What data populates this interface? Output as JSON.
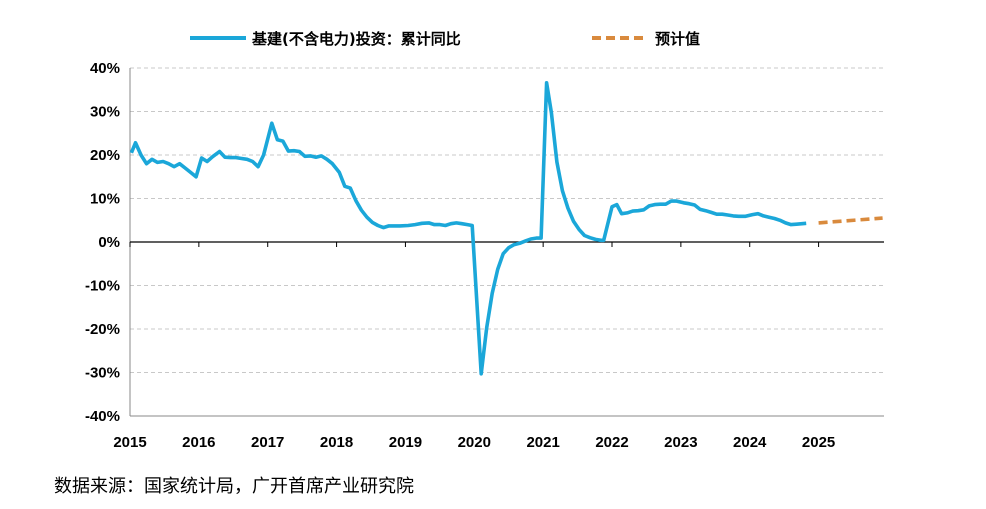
{
  "chart_data": {
    "type": "line",
    "title": "",
    "xlabel": "",
    "ylabel": "",
    "x_ticks": [
      "2015",
      "2016",
      "2017",
      "2018",
      "2019",
      "2020",
      "2021",
      "2022",
      "2023",
      "2024",
      "2025"
    ],
    "y_ticks": [
      "40%",
      "30%",
      "20%",
      "10%",
      "0%",
      "-10%",
      "-20%",
      "-30%",
      "-40%"
    ],
    "ylim": [
      -40,
      40
    ],
    "xlim": [
      2015.0,
      2025.95
    ],
    "grid": "horizontal dashed",
    "legend_position": "top-center",
    "series": [
      {
        "name": "基建(不含电力)投资：累计同比",
        "color": "#1ba7d9",
        "style": "solid",
        "points": [
          [
            2015.02,
            20.5
          ],
          [
            2015.08,
            22.8
          ],
          [
            2015.16,
            20.0
          ],
          [
            2015.24,
            18.0
          ],
          [
            2015.32,
            19.0
          ],
          [
            2015.4,
            18.3
          ],
          [
            2015.48,
            18.5
          ],
          [
            2015.56,
            18.0
          ],
          [
            2015.64,
            17.3
          ],
          [
            2015.72,
            18.0
          ],
          [
            2015.8,
            17.0
          ],
          [
            2015.88,
            16.0
          ],
          [
            2015.96,
            15.0
          ],
          [
            2016.04,
            19.3
          ],
          [
            2016.12,
            18.5
          ],
          [
            2016.2,
            19.6
          ],
          [
            2016.3,
            20.8
          ],
          [
            2016.38,
            19.5
          ],
          [
            2016.46,
            19.4
          ],
          [
            2016.54,
            19.4
          ],
          [
            2016.62,
            19.2
          ],
          [
            2016.7,
            19.0
          ],
          [
            2016.78,
            18.5
          ],
          [
            2016.86,
            17.3
          ],
          [
            2016.94,
            20.0
          ],
          [
            2017.06,
            27.3
          ],
          [
            2017.14,
            23.5
          ],
          [
            2017.22,
            23.2
          ],
          [
            2017.3,
            20.9
          ],
          [
            2017.38,
            21.0
          ],
          [
            2017.46,
            20.8
          ],
          [
            2017.54,
            19.7
          ],
          [
            2017.62,
            19.8
          ],
          [
            2017.7,
            19.5
          ],
          [
            2017.78,
            19.8
          ],
          [
            2017.86,
            19.0
          ],
          [
            2017.94,
            18.0
          ],
          [
            2018.04,
            16.0
          ],
          [
            2018.12,
            12.8
          ],
          [
            2018.2,
            12.4
          ],
          [
            2018.28,
            9.5
          ],
          [
            2018.36,
            7.3
          ],
          [
            2018.44,
            5.7
          ],
          [
            2018.52,
            4.5
          ],
          [
            2018.6,
            3.8
          ],
          [
            2018.68,
            3.3
          ],
          [
            2018.76,
            3.7
          ],
          [
            2018.84,
            3.7
          ],
          [
            2018.92,
            3.7
          ],
          [
            2019.04,
            3.8
          ],
          [
            2019.14,
            4.0
          ],
          [
            2019.24,
            4.3
          ],
          [
            2019.34,
            4.4
          ],
          [
            2019.42,
            4.0
          ],
          [
            2019.5,
            4.0
          ],
          [
            2019.58,
            3.8
          ],
          [
            2019.66,
            4.2
          ],
          [
            2019.74,
            4.4
          ],
          [
            2019.82,
            4.2
          ],
          [
            2019.9,
            4.0
          ],
          [
            2019.97,
            3.8
          ],
          [
            2020.1,
            -30.3
          ],
          [
            2020.18,
            -19.7
          ],
          [
            2020.26,
            -11.8
          ],
          [
            2020.34,
            -6.3
          ],
          [
            2020.42,
            -2.7
          ],
          [
            2020.5,
            -1.3
          ],
          [
            2020.58,
            -0.6
          ],
          [
            2020.66,
            -0.3
          ],
          [
            2020.74,
            0.2
          ],
          [
            2020.82,
            0.7
          ],
          [
            2020.9,
            0.9
          ],
          [
            2020.97,
            0.9
          ],
          [
            2021.05,
            36.6
          ],
          [
            2021.12,
            29.7
          ],
          [
            2021.2,
            18.4
          ],
          [
            2021.28,
            11.8
          ],
          [
            2021.36,
            7.8
          ],
          [
            2021.44,
            4.8
          ],
          [
            2021.52,
            2.9
          ],
          [
            2021.6,
            1.5
          ],
          [
            2021.68,
            1.0
          ],
          [
            2021.76,
            0.6
          ],
          [
            2021.84,
            0.4
          ],
          [
            2021.88,
            0.4
          ],
          [
            2022.0,
            8.1
          ],
          [
            2022.07,
            8.6
          ],
          [
            2022.14,
            6.5
          ],
          [
            2022.22,
            6.7
          ],
          [
            2022.3,
            7.1
          ],
          [
            2022.38,
            7.2
          ],
          [
            2022.46,
            7.4
          ],
          [
            2022.54,
            8.3
          ],
          [
            2022.62,
            8.6
          ],
          [
            2022.7,
            8.7
          ],
          [
            2022.78,
            8.7
          ],
          [
            2022.86,
            9.4
          ],
          [
            2022.94,
            9.4
          ],
          [
            2023.04,
            9.0
          ],
          [
            2023.12,
            8.8
          ],
          [
            2023.2,
            8.5
          ],
          [
            2023.28,
            7.5
          ],
          [
            2023.36,
            7.2
          ],
          [
            2023.44,
            6.8
          ],
          [
            2023.52,
            6.4
          ],
          [
            2023.6,
            6.4
          ],
          [
            2023.68,
            6.2
          ],
          [
            2023.76,
            6.0
          ],
          [
            2023.84,
            5.9
          ],
          [
            2023.94,
            5.9
          ],
          [
            2024.04,
            6.3
          ],
          [
            2024.12,
            6.5
          ],
          [
            2024.2,
            6.0
          ],
          [
            2024.28,
            5.7
          ],
          [
            2024.36,
            5.4
          ],
          [
            2024.44,
            5.0
          ],
          [
            2024.52,
            4.4
          ],
          [
            2024.6,
            4.0
          ],
          [
            2024.68,
            4.1
          ],
          [
            2024.76,
            4.2
          ],
          [
            2024.82,
            4.3
          ]
        ]
      },
      {
        "name": "预计值",
        "color": "#d98a3d",
        "style": "dashed",
        "points": [
          [
            2025.0,
            4.4
          ],
          [
            2025.93,
            5.5
          ]
        ]
      }
    ]
  },
  "source": "数据来源：国家统计局，广开首席产业研究院"
}
